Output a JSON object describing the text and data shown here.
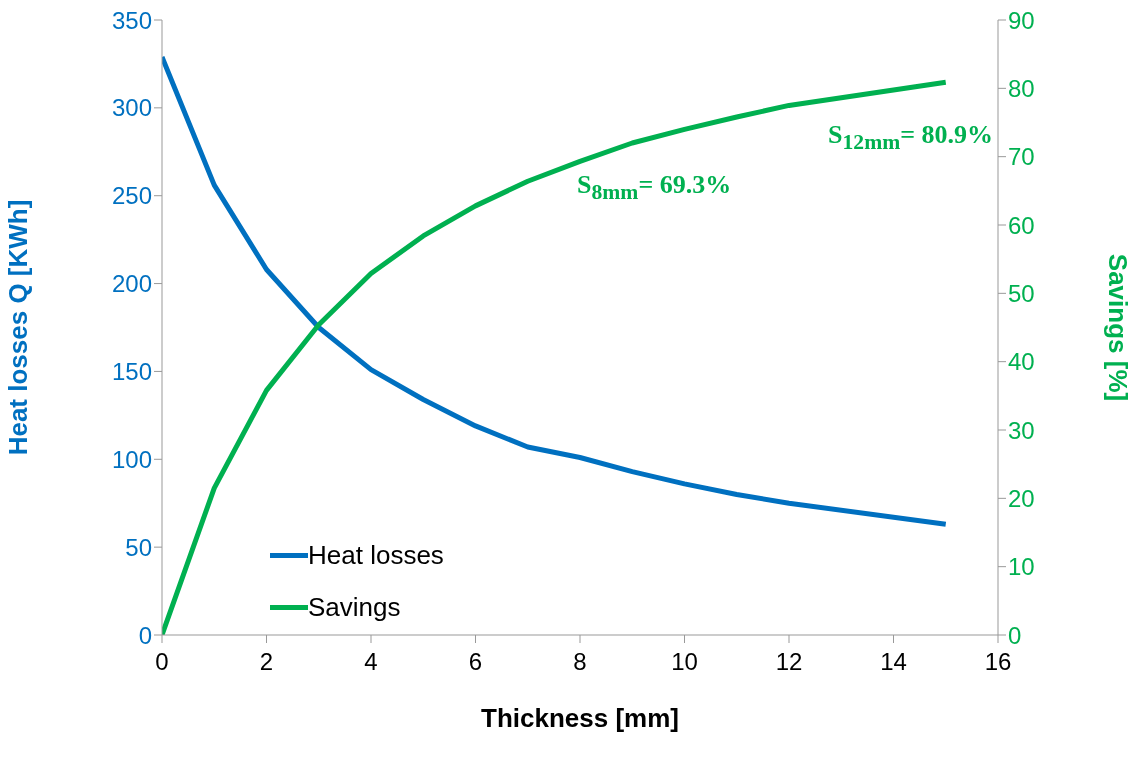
{
  "chart_data": {
    "type": "line",
    "xlabel": "Thickness [mm]",
    "ylabel": "Heat losses Q [KWh]",
    "y2label": "Savings [%]",
    "x": [
      0,
      1,
      2,
      3,
      4,
      5,
      6,
      7,
      8,
      9,
      10,
      11,
      12,
      15
    ],
    "series": [
      {
        "name": "Heat losses",
        "color": "#0070c0",
        "values": [
          329,
          256,
          208,
          175,
          151,
          134,
          119,
          107,
          101,
          93,
          86,
          80,
          75,
          63
        ]
      },
      {
        "name": "Savings",
        "color": "#00b050",
        "axis": "y2",
        "values": [
          0,
          21.5,
          35.8,
          45.4,
          52.9,
          58.4,
          62.8,
          66.4,
          69.3,
          72,
          74,
          75.8,
          77.5,
          80.9
        ]
      }
    ],
    "xlim": [
      0,
      16
    ],
    "xticks": [
      0,
      2,
      4,
      6,
      8,
      10,
      12,
      14,
      16
    ],
    "ylim": [
      0,
      350
    ],
    "yticks": [
      0,
      50,
      100,
      150,
      200,
      250,
      300,
      350
    ],
    "y2lim": [
      0,
      90
    ],
    "y2ticks": [
      0,
      10,
      20,
      30,
      40,
      50,
      60,
      70,
      80,
      90
    ],
    "annotations": [
      "S$_{8mm}$= 69.3%",
      "S$_{12mm}$= 80.9%"
    ],
    "grid": false,
    "legend": "bottom left",
    "marker": "none",
    "line_style": "solid"
  }
}
